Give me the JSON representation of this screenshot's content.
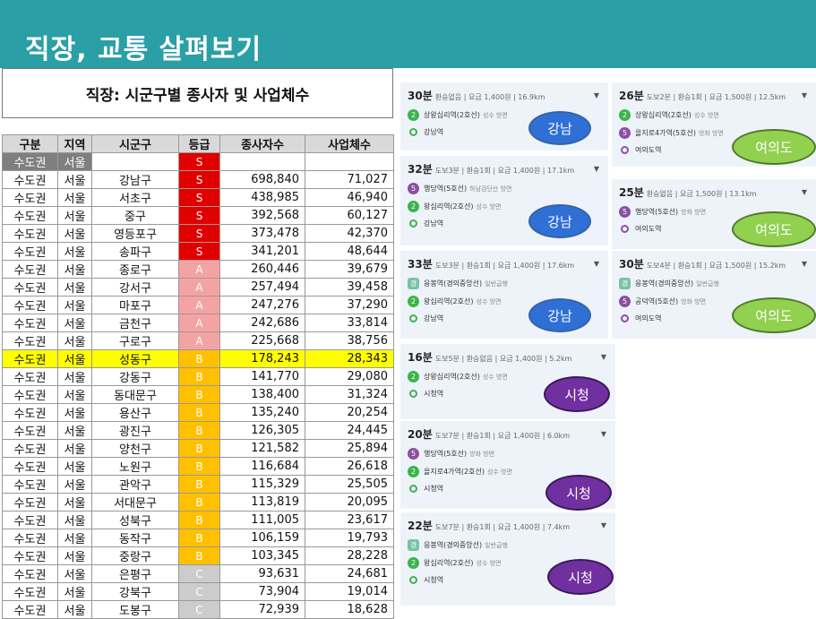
{
  "title": "직장, 교통 살펴보기",
  "table_title": "직장: 시군구별 종사자 및 사업체수",
  "headers": [
    "구분",
    "지역",
    "시군구",
    "등급",
    "종사자수",
    "사업체수"
  ],
  "first_row": {
    "region": "수도권",
    "area": "서울",
    "grade": "S"
  },
  "rows": [
    {
      "region": "수도권",
      "area": "서울",
      "district": "강남구",
      "grade": "S",
      "workers": "698,840",
      "businesses": "71,027"
    },
    {
      "region": "수도권",
      "area": "서울",
      "district": "서초구",
      "grade": "S",
      "workers": "438,985",
      "businesses": "46,940"
    },
    {
      "region": "수도권",
      "area": "서울",
      "district": "중구",
      "grade": "S",
      "workers": "392,568",
      "businesses": "60,127"
    },
    {
      "region": "수도권",
      "area": "서울",
      "district": "영등포구",
      "grade": "S",
      "workers": "373,478",
      "businesses": "42,370"
    },
    {
      "region": "수도권",
      "area": "서울",
      "district": "송파구",
      "grade": "S",
      "workers": "341,201",
      "businesses": "48,644"
    },
    {
      "region": "수도권",
      "area": "서울",
      "district": "종로구",
      "grade": "A",
      "workers": "260,446",
      "businesses": "39,679"
    },
    {
      "region": "수도권",
      "area": "서울",
      "district": "강서구",
      "grade": "A",
      "workers": "257,494",
      "businesses": "39,458"
    },
    {
      "region": "수도권",
      "area": "서울",
      "district": "마포구",
      "grade": "A",
      "workers": "247,276",
      "businesses": "37,290"
    },
    {
      "region": "수도권",
      "area": "서울",
      "district": "금천구",
      "grade": "A",
      "workers": "242,686",
      "businesses": "33,814"
    },
    {
      "region": "수도권",
      "area": "서울",
      "district": "구로구",
      "grade": "A",
      "workers": "225,668",
      "businesses": "38,756"
    },
    {
      "region": "수도권",
      "area": "서울",
      "district": "성동구",
      "grade": "B",
      "workers": "178,243",
      "businesses": "28,343",
      "highlight": true
    },
    {
      "region": "수도권",
      "area": "서울",
      "district": "강동구",
      "grade": "B",
      "workers": "141,770",
      "businesses": "29,080"
    },
    {
      "region": "수도권",
      "area": "서울",
      "district": "동대문구",
      "grade": "B",
      "workers": "138,400",
      "businesses": "31,324"
    },
    {
      "region": "수도권",
      "area": "서울",
      "district": "용산구",
      "grade": "B",
      "workers": "135,240",
      "businesses": "20,254"
    },
    {
      "region": "수도권",
      "area": "서울",
      "district": "광진구",
      "grade": "B",
      "workers": "126,305",
      "businesses": "24,445"
    },
    {
      "region": "수도권",
      "area": "서울",
      "district": "양천구",
      "grade": "B",
      "workers": "121,582",
      "businesses": "25,894"
    },
    {
      "region": "수도권",
      "area": "서울",
      "district": "노원구",
      "grade": "B",
      "workers": "116,684",
      "businesses": "26,618"
    },
    {
      "region": "수도권",
      "area": "서울",
      "district": "관악구",
      "grade": "B",
      "workers": "115,329",
      "businesses": "25,505"
    },
    {
      "region": "수도권",
      "area": "서울",
      "district": "서대문구",
      "grade": "B",
      "workers": "113,819",
      "businesses": "20,095"
    },
    {
      "region": "수도권",
      "area": "서울",
      "district": "성북구",
      "grade": "B",
      "workers": "111,005",
      "businesses": "23,617"
    },
    {
      "region": "수도권",
      "area": "서울",
      "district": "동작구",
      "grade": "B",
      "workers": "106,159",
      "businesses": "19,793"
    },
    {
      "region": "수도권",
      "area": "서울",
      "district": "중랑구",
      "grade": "B",
      "workers": "103,345",
      "businesses": "28,228"
    },
    {
      "region": "수도권",
      "area": "서울",
      "district": "은평구",
      "grade": "C",
      "workers": "93,631",
      "businesses": "24,681"
    },
    {
      "region": "수도권",
      "area": "서울",
      "district": "강북구",
      "grade": "C",
      "workers": "73,904",
      "businesses": "19,014"
    },
    {
      "region": "수도권",
      "area": "서울",
      "district": "도봉구",
      "grade": "C",
      "workers": "72,939",
      "businesses": "18,628"
    }
  ],
  "grade_colors": {
    "S": "#e00000",
    "A": "#f4a3a3",
    "B": "#ffc000",
    "C": "#cccccc"
  },
  "routes": [
    {
      "time": "30분",
      "meta": "환승없음 | 요금 1,400원 | 16.9km",
      "dest_label": "강남",
      "dest_color": "#2f6fd6",
      "stops": [
        {
          "badge": "2",
          "line": "l2",
          "name": "상왕십리역(2호선)",
          "sub": "성수 방면"
        },
        {
          "dot": "g",
          "name": "강남역"
        }
      ]
    },
    {
      "time": "32분",
      "meta": "도보3분 | 환승1회 | 요금 1,400원 | 17.1km",
      "dest_label": "강남",
      "dest_color": "#2f6fd6",
      "stops": [
        {
          "badge": "5",
          "line": "l5",
          "name": "행당역(5호선)",
          "sub": "하남검단산 방면"
        },
        {
          "badge": "2",
          "line": "l2",
          "name": "왕십리역(2호선)",
          "sub": "성수 방면"
        },
        {
          "dot": "g",
          "name": "강남역"
        }
      ]
    },
    {
      "time": "33분",
      "meta": "도보3분 | 환승1회 | 요금 1,400원 | 17.6km",
      "dest_label": "강남",
      "dest_color": "#2f6fd6",
      "stops": [
        {
          "badge": "경",
          "line": "gj",
          "name": "응봉역(경의중앙선)",
          "sub": "일반급행"
        },
        {
          "badge": "2",
          "line": "l2",
          "name": "왕십리역(2호선)",
          "sub": "성수 방면"
        },
        {
          "dot": "g",
          "name": "강남역"
        }
      ]
    },
    {
      "time": "26분",
      "meta": "도보2분 | 환승1회 | 요금 1,500원 | 12.5km",
      "dest_label": "여의도",
      "dest_color": "#92d050",
      "stops": [
        {
          "badge": "2",
          "line": "l2",
          "name": "상왕십리역(2호선)",
          "sub": "성수 방면"
        },
        {
          "badge": "5",
          "line": "l5",
          "name": "을지로4가역(5호선)",
          "sub": "방화 방면"
        },
        {
          "dot": "p",
          "name": "여의도역"
        }
      ]
    },
    {
      "time": "25분",
      "meta": "환승없음 | 요금 1,500원 | 13.1km",
      "dest_label": "여의도",
      "dest_color": "#92d050",
      "stops": [
        {
          "badge": "5",
          "line": "l5",
          "name": "행당역(5호선)",
          "sub": "방화 방면"
        },
        {
          "dot": "p",
          "name": "여의도역"
        }
      ]
    },
    {
      "time": "30분",
      "meta": "도보4분 | 환승1회 | 요금 1,500원 | 15.2km",
      "dest_label": "여의도",
      "dest_color": "#92d050",
      "stops": [
        {
          "badge": "경",
          "line": "gj",
          "name": "응봉역(경의중앙선)",
          "sub": "일반급행"
        },
        {
          "badge": "5",
          "line": "l5",
          "name": "공덕역(5호선)",
          "sub": "방화 방면"
        },
        {
          "dot": "p",
          "name": "여의도역"
        }
      ]
    },
    {
      "time": "16분",
      "meta": "도보5분 | 환승없음 | 요금 1,400원 | 5.2km",
      "dest_label": "시청",
      "dest_color": "#7030a0",
      "stops": [
        {
          "badge": "2",
          "line": "l2",
          "name": "상왕십리역(2호선)",
          "sub": "성수 방면"
        },
        {
          "dot": "g",
          "name": "시청역"
        }
      ]
    },
    {
      "time": "20분",
      "meta": "도보7분 | 환승1회 | 요금 1,400원 | 6.0km",
      "dest_label": "시청",
      "dest_color": "#7030a0",
      "stops": [
        {
          "badge": "5",
          "line": "l5",
          "name": "행당역(5호선)",
          "sub": "방화 방면"
        },
        {
          "badge": "2",
          "line": "l2",
          "name": "을지로4가역(2호선)",
          "sub": "성수 방면"
        },
        {
          "dot": "g",
          "name": "시청역"
        }
      ]
    },
    {
      "time": "22분",
      "meta": "도보7분 | 환승1회 | 요금 1,400원 | 7.4km",
      "dest_label": "시청",
      "dest_color": "#7030a0",
      "stops": [
        {
          "badge": "경",
          "line": "gj",
          "name": "응봉역(경의중앙선)",
          "sub": "일반급행"
        },
        {
          "badge": "2",
          "line": "l2",
          "name": "왕십리역(2호선)",
          "sub": "성수 방면"
        },
        {
          "dot": "g",
          "name": "시청역"
        }
      ]
    }
  ]
}
